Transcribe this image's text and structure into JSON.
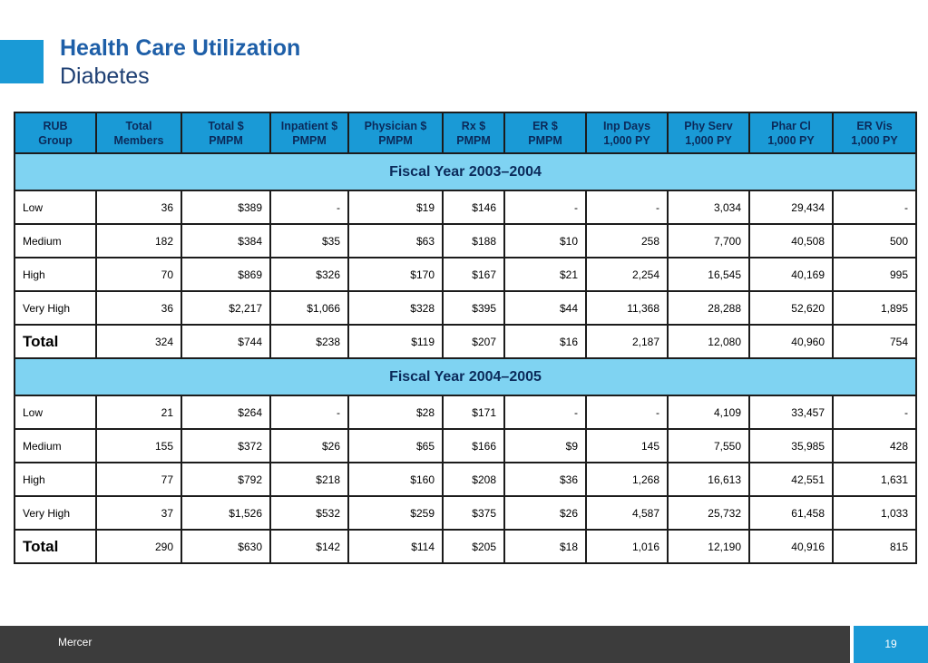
{
  "header": {
    "title": "Health Care Utilization",
    "subtitle": "Diabetes"
  },
  "table": {
    "columns": [
      "RUB\nGroup",
      "Total\nMembers",
      "Total $\nPMPM",
      "Inpatient $\nPMPM",
      "Physician $\nPMPM",
      "Rx $\nPMPM",
      "ER $\nPMPM",
      "Inp Days\n1,000 PY",
      "Phy Serv\n1,000 PY",
      "Phar Cl\n1,000 PY",
      "ER Vis\n1,000 PY"
    ],
    "sections": [
      {
        "label": "Fiscal Year 2003–2004",
        "rows": [
          [
            "Low",
            "36",
            "$389",
            "-",
            "$19",
            "$146",
            "-",
            "-",
            "3,034",
            "29,434",
            "-"
          ],
          [
            "Medium",
            "182",
            "$384",
            "$35",
            "$63",
            "$188",
            "$10",
            "258",
            "7,700",
            "40,508",
            "500"
          ],
          [
            "High",
            "70",
            "$869",
            "$326",
            "$170",
            "$167",
            "$21",
            "2,254",
            "16,545",
            "40,169",
            "995"
          ],
          [
            "Very High",
            "36",
            "$2,217",
            "$1,066",
            "$328",
            "$395",
            "$44",
            "11,368",
            "28,288",
            "52,620",
            "1,895"
          ],
          [
            "Total",
            "324",
            "$744",
            "$238",
            "$119",
            "$207",
            "$16",
            "2,187",
            "12,080",
            "40,960",
            "754"
          ]
        ]
      },
      {
        "label": "Fiscal Year 2004–2005",
        "rows": [
          [
            "Low",
            "21",
            "$264",
            "-",
            "$28",
            "$171",
            "-",
            "-",
            "4,109",
            "33,457",
            "-"
          ],
          [
            "Medium",
            "155",
            "$372",
            "$26",
            "$65",
            "$166",
            "$9",
            "145",
            "7,550",
            "35,985",
            "428"
          ],
          [
            "High",
            "77",
            "$792",
            "$218",
            "$160",
            "$208",
            "$36",
            "1,268",
            "16,613",
            "42,551",
            "1,631"
          ],
          [
            "Very High",
            "37",
            "$1,526",
            "$532",
            "$259",
            "$375",
            "$26",
            "4,587",
            "25,732",
            "61,458",
            "1,033"
          ],
          [
            "Total",
            "290",
            "$630",
            "$142",
            "$114",
            "$205",
            "$18",
            "1,016",
            "12,190",
            "40,916",
            "815"
          ]
        ]
      }
    ]
  },
  "footer": {
    "brand": "Mercer",
    "page_number": "19"
  },
  "colors": {
    "accent": "#1a9ad6",
    "section_band": "#7fd3f2",
    "title": "#1e5fa8",
    "footer_bar": "#3c3c3c"
  }
}
